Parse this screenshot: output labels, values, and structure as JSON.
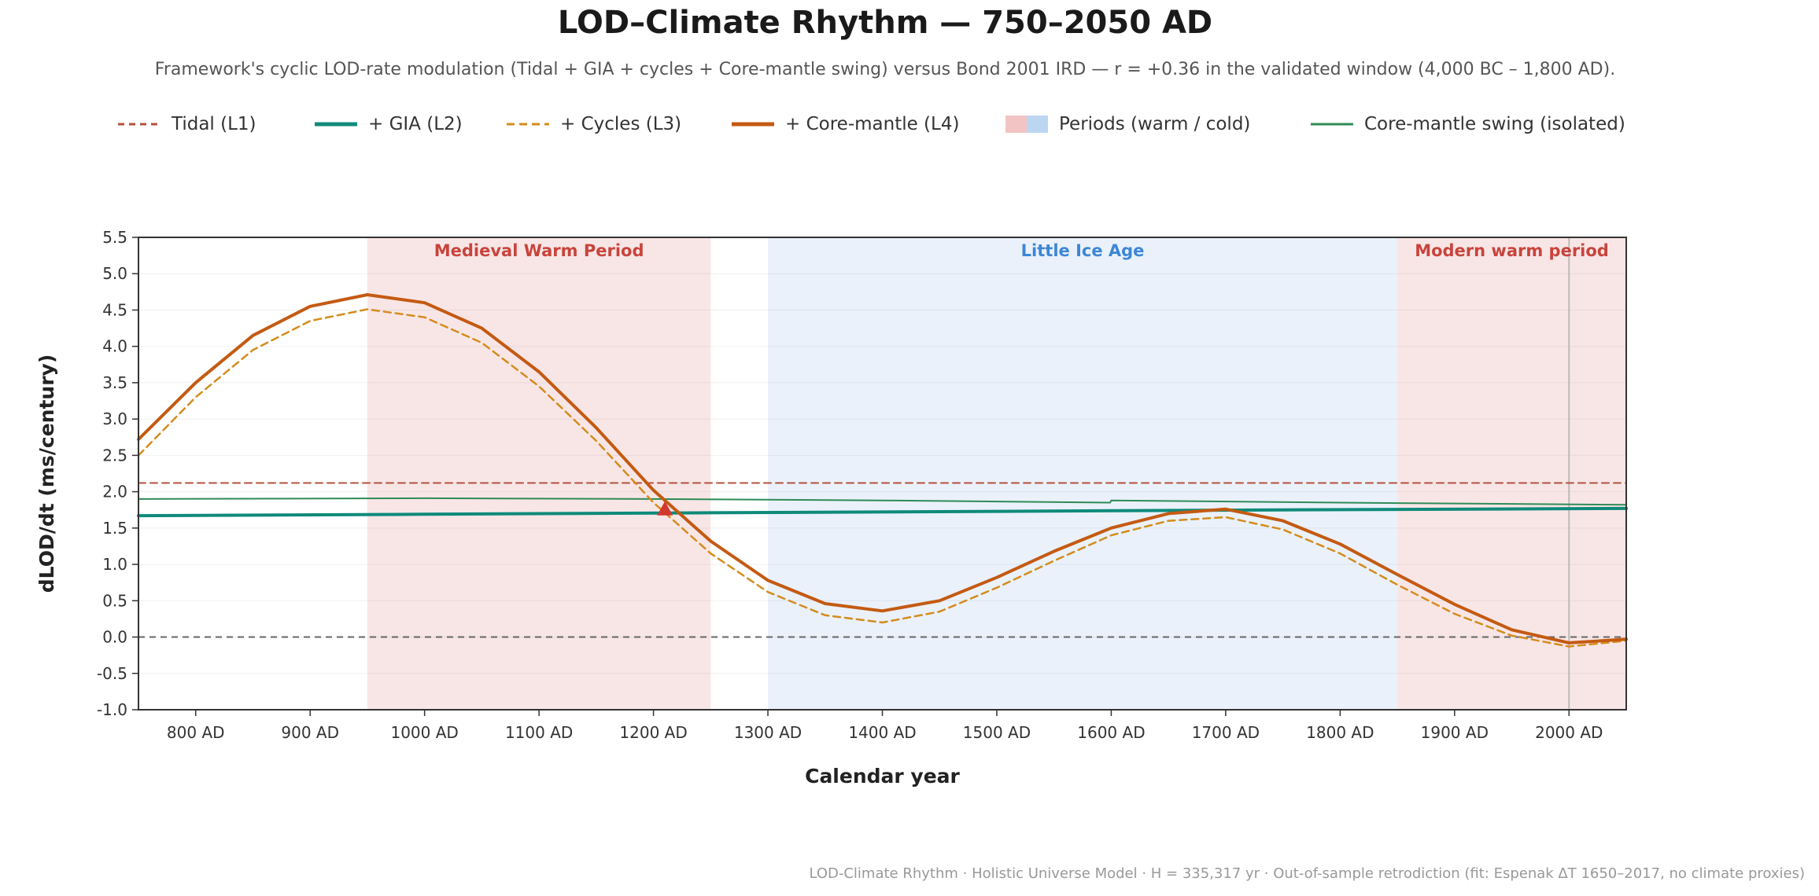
{
  "header": {
    "title": "LOD–Climate Rhythm — 750–2050 AD",
    "subtitle": "Framework's cyclic LOD-rate modulation (Tidal + GIA + cycles + Core-mantle swing) versus Bond 2001 IRD — r = +0.36 in the validated window (4,000 BC – 1,800 AD)."
  },
  "legend": [
    {
      "label": "Tidal (L1)",
      "color": "#b5503e",
      "style": "dashed"
    },
    {
      "label": "+ GIA (L2)",
      "color": "#0f8a7a",
      "style": "solid"
    },
    {
      "label": "+ Cycles (L3)",
      "color": "#d48c1c",
      "style": "dashed"
    },
    {
      "label": "+ Core-mantle (L4)",
      "color": "#c45a12",
      "style": "solid"
    },
    {
      "label": "Periods (warm / cold)",
      "colors": [
        "#f2c4c4",
        "#bcd6f2"
      ],
      "style": "swatch"
    },
    {
      "label": "Core-mantle swing (isolated)",
      "color": "#2e8b57",
      "style": "solid"
    }
  ],
  "chart_data": {
    "type": "line",
    "xlabel": "Calendar year",
    "ylabel": "dLOD/dt (ms/century)",
    "xlim": [
      750,
      2050
    ],
    "ylim": [
      -1.0,
      5.5
    ],
    "x_ticks": [
      {
        "value": 800,
        "label": "800 AD"
      },
      {
        "value": 900,
        "label": "900 AD"
      },
      {
        "value": 1000,
        "label": "1000 AD"
      },
      {
        "value": 1100,
        "label": "1100 AD"
      },
      {
        "value": 1200,
        "label": "1200 AD"
      },
      {
        "value": 1300,
        "label": "1300 AD"
      },
      {
        "value": 1400,
        "label": "1400 AD"
      },
      {
        "value": 1500,
        "label": "1500 AD"
      },
      {
        "value": 1600,
        "label": "1600 AD"
      },
      {
        "value": 1700,
        "label": "1700 AD"
      },
      {
        "value": 1800,
        "label": "1800 AD"
      },
      {
        "value": 1900,
        "label": "1900 AD"
      },
      {
        "value": 2000,
        "label": "2000 AD"
      }
    ],
    "y_ticks": [
      {
        "value": 5.5,
        "label": "5.5"
      },
      {
        "value": 5.0,
        "label": "5.0"
      },
      {
        "value": 4.5,
        "label": "4.5"
      },
      {
        "value": 4.0,
        "label": "4.0"
      },
      {
        "value": 3.5,
        "label": "3.5"
      },
      {
        "value": 3.0,
        "label": "3.0"
      },
      {
        "value": 2.5,
        "label": "2.5"
      },
      {
        "value": 2.0,
        "label": "2.0"
      },
      {
        "value": 1.5,
        "label": "1.5"
      },
      {
        "value": 1.0,
        "label": "1.0"
      },
      {
        "value": 0.5,
        "label": "0.5"
      },
      {
        "value": 0.0,
        "label": "0.0"
      },
      {
        "value": -0.5,
        "label": "-0.5"
      },
      {
        "value": -1.0,
        "label": "-1.0"
      }
    ],
    "periods": [
      {
        "label": "Medieval Warm Period",
        "start": 950,
        "end": 1250,
        "kind": "warm",
        "fill": "#f8e6e6",
        "text_color": "#c8443c"
      },
      {
        "label": "Little Ice Age",
        "start": 1300,
        "end": 1850,
        "kind": "cold",
        "fill": "#eaf1fb",
        "text_color": "#3d86d6"
      },
      {
        "label": "Modern warm period",
        "start": 1850,
        "end": 2050,
        "kind": "warm",
        "fill": "#f8e6e6",
        "text_color": "#c8443c"
      }
    ],
    "reference_lines": [
      {
        "axis": "y",
        "value": 0.0,
        "color": "#666666",
        "style": "dashed"
      },
      {
        "axis": "x",
        "value": 2000,
        "color": "#bbbbbb",
        "style": "solid"
      }
    ],
    "marker": {
      "x": 1210,
      "y": 1.75,
      "shape": "triangle",
      "color": "#d2382e"
    },
    "series": [
      {
        "name": "Tidal (L1)",
        "color": "#b5503e",
        "style": "dashed",
        "width": 2,
        "x": [
          750,
          2050
        ],
        "y": [
          2.12,
          2.12
        ]
      },
      {
        "name": "+ GIA (L2)",
        "color": "#0f8a7a",
        "style": "solid",
        "width": 4,
        "x": [
          750,
          1000,
          1250,
          1500,
          1750,
          2050
        ],
        "y": [
          1.67,
          1.69,
          1.71,
          1.73,
          1.75,
          1.77
        ]
      },
      {
        "name": "+ Cycles (L3)",
        "color": "#d48c1c",
        "style": "dashed",
        "width": 2.5,
        "x": [
          750,
          800,
          850,
          900,
          950,
          1000,
          1050,
          1100,
          1150,
          1200,
          1250,
          1300,
          1350,
          1400,
          1450,
          1500,
          1550,
          1600,
          1650,
          1700,
          1750,
          1800,
          1850,
          1900,
          1950,
          2000,
          2050
        ],
        "y": [
          2.5,
          3.3,
          3.95,
          4.35,
          4.51,
          4.4,
          4.05,
          3.45,
          2.7,
          1.85,
          1.15,
          0.62,
          0.3,
          0.2,
          0.35,
          0.68,
          1.05,
          1.4,
          1.6,
          1.65,
          1.48,
          1.15,
          0.72,
          0.32,
          0.02,
          -0.13,
          -0.05
        ]
      },
      {
        "name": "+ Core-mantle (L4)",
        "color": "#c45a12",
        "style": "solid",
        "width": 4,
        "x": [
          750,
          800,
          850,
          900,
          950,
          1000,
          1050,
          1100,
          1150,
          1200,
          1250,
          1300,
          1350,
          1400,
          1450,
          1500,
          1550,
          1600,
          1650,
          1700,
          1750,
          1800,
          1850,
          1900,
          1950,
          2000,
          2050
        ],
        "y": [
          2.72,
          3.5,
          4.15,
          4.55,
          4.71,
          4.6,
          4.25,
          3.65,
          2.88,
          2.02,
          1.32,
          0.78,
          0.46,
          0.36,
          0.5,
          0.82,
          1.18,
          1.5,
          1.7,
          1.76,
          1.6,
          1.28,
          0.86,
          0.45,
          0.1,
          -0.08,
          -0.03
        ]
      },
      {
        "name": "Core-mantle swing (isolated)",
        "color": "#2e8b57",
        "style": "solid",
        "width": 2,
        "x": [
          750,
          1000,
          1200,
          1400,
          1599,
          1600,
          1800,
          2050
        ],
        "y": [
          1.9,
          1.91,
          1.9,
          1.88,
          1.85,
          1.88,
          1.85,
          1.82
        ]
      }
    ]
  },
  "footer": "LOD-Climate Rhythm · Holistic Universe Model · H = 335,317 yr · Out-of-sample retrodiction (fit: Espenak ΔT 1650–2017, no climate proxies)"
}
